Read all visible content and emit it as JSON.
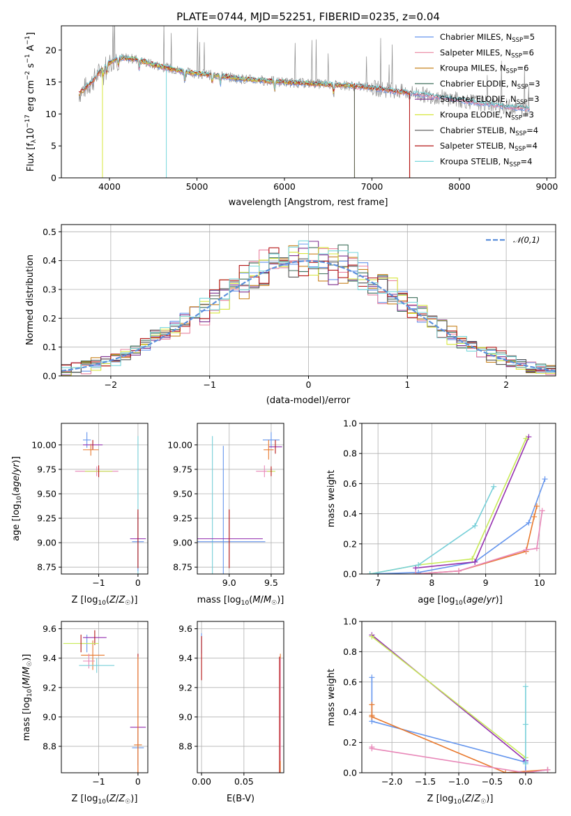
{
  "colors": {
    "palette": [
      "#6495ed",
      "#e9829f",
      "#c8821e",
      "#3c6e5a",
      "#7b2e8e",
      "#d7e63c",
      "#555555",
      "#b41414",
      "#78d7dc"
    ],
    "summary": [
      "#6495ed",
      "#9530b0",
      "#e8782c",
      "#e887b8",
      "#c8ea58",
      "#76cfd8"
    ]
  },
  "chart_data": [
    {
      "type": "line",
      "title": "PLATE=0744, MJD=52251, FIBERID=0235, z=0.04",
      "xlabel": "wavelength [Angstrom, rest frame]",
      "ylabel": "Flux [f_λ 10^-17 erg cm^-2 s^-1 A^-1]",
      "xlim": [
        3450,
        9100
      ],
      "ylim": [
        0,
        23.8
      ],
      "xticks": [
        4000,
        5000,
        6000,
        7000,
        8000,
        9000
      ],
      "yticks": [
        0,
        5,
        10,
        15,
        20
      ],
      "grid": false,
      "legend_position": "top-right",
      "legend": [
        {
          "model": "Chabrier MILES",
          "nssp": "5"
        },
        {
          "model": "Salpeter MILES",
          "nssp": "6"
        },
        {
          "model": "Kroupa MILES",
          "nssp": "6"
        },
        {
          "model": "Chabrier ELODIE",
          "nssp": "3"
        },
        {
          "model": "Salpeter ELODIE",
          "nssp": "3"
        },
        {
          "model": "Kroupa ELODIE",
          "nssp": "3"
        },
        {
          "model": "Chabrier STELIB",
          "nssp": "4"
        },
        {
          "model": "Salpeter STELIB",
          "nssp": "4"
        },
        {
          "model": "Kroupa STELIB",
          "nssp": "4"
        }
      ],
      "continuum": {
        "x": [
          3650,
          3800,
          3950,
          4100,
          4300,
          4500,
          4700,
          4900,
          5100,
          5300,
          5500,
          5800,
          6100,
          6400,
          6700,
          7000,
          7300,
          7600,
          7900,
          8200,
          8500,
          8800
        ],
        "y": [
          13.2,
          15.0,
          17.6,
          18.8,
          18.6,
          17.7,
          17.1,
          16.5,
          16.2,
          15.9,
          15.5,
          15.2,
          14.9,
          14.7,
          14.5,
          14.1,
          13.5,
          13.0,
          12.4,
          11.8,
          11.2,
          10.8
        ]
      },
      "model_ends": [
        8800,
        8800,
        7430,
        6800,
        6800,
        6800,
        8800,
        7430,
        8800
      ],
      "model_starts": [
        3700,
        3700,
        3650,
        3900,
        3900,
        3900,
        3700,
        3650,
        3700
      ]
    },
    {
      "type": "line",
      "xlabel": "(data-model)/error",
      "ylabel": "Normed distribution",
      "xlim": [
        -2.5,
        2.5
      ],
      "ylim": [
        0,
        0.525
      ],
      "xticks": [
        -2,
        -1,
        0,
        1,
        2
      ],
      "yticks": [
        0.0,
        0.1,
        0.2,
        0.3,
        0.4,
        0.5
      ],
      "grid": true,
      "legend_position": "top-right",
      "reference_curve": {
        "name": "𝒩(0,1)",
        "style": "dashed",
        "mu": 0,
        "sigma": 1
      }
    },
    {
      "type": "scatter",
      "xlabel": "Z [log10(Z/Z☉)]",
      "ylabel": "age  [log10(age/yr)]",
      "xlim": [
        -1.95,
        0.25
      ],
      "ylim": [
        8.68,
        10.22
      ],
      "xticks": [
        -1,
        0
      ],
      "yticks": [
        8.75,
        9.0,
        9.25,
        9.5,
        9.75,
        10.0
      ],
      "grid": true,
      "points": [
        {
          "x": -1.3,
          "y": 10.05,
          "xerr": 0.1,
          "yerr": 0.08
        },
        {
          "x": -1.15,
          "y": 10.0,
          "xerr": 0.25,
          "yerr": 0.05
        },
        {
          "x": -1.2,
          "y": 9.95,
          "xerr": 0.2,
          "yerr": 0.06
        },
        {
          "x": -1.05,
          "y": 9.73,
          "xerr": 0.55,
          "yerr": 0.05
        },
        {
          "x": -1.0,
          "y": 9.73,
          "xerr": 0.35,
          "yerr": 0.06
        },
        {
          "x": 0.0,
          "y": 9.04,
          "xerr": 0.2,
          "yerr": 1.05
        },
        {
          "x": 0.0,
          "y": 9.01,
          "xerr": 0.15,
          "yerr": 0.3
        },
        {
          "x": 0.0,
          "y": 9.04,
          "xerr": 0.2,
          "yerr": 0.3
        }
      ]
    },
    {
      "type": "scatter",
      "xlabel": "mass [log10(M/M☉)]",
      "ylabel": "",
      "xlim": [
        8.62,
        9.65
      ],
      "ylim": [
        8.68,
        10.22
      ],
      "xticks": [
        9.0,
        9.5
      ],
      "yticks": [
        8.75,
        9.0,
        9.25,
        9.5,
        9.75,
        10.0
      ],
      "grid": true,
      "points": [
        {
          "x": 9.5,
          "y": 10.05,
          "xerr": 0.1,
          "yerr": 0.08
        },
        {
          "x": 9.55,
          "y": 9.98,
          "xerr": 0.08,
          "yerr": 0.07
        },
        {
          "x": 9.47,
          "y": 9.95,
          "xerr": 0.06,
          "yerr": 0.1
        },
        {
          "x": 9.42,
          "y": 9.73,
          "xerr": 0.1,
          "yerr": 0.06
        },
        {
          "x": 9.5,
          "y": 9.73,
          "xerr": 0.05,
          "yerr": 0.05
        },
        {
          "x": 8.8,
          "y": 9.04,
          "xerr": 0.12,
          "yerr": 1.05
        },
        {
          "x": 8.93,
          "y": 9.01,
          "xerr": 0.5,
          "yerr": 0.98
        },
        {
          "x": 9.0,
          "y": 9.04,
          "xerr": 0.4,
          "yerr": 0.3
        }
      ]
    },
    {
      "type": "line",
      "xlabel": "age  [log10(age/yr)]",
      "ylabel": "mass weight",
      "xlim": [
        6.7,
        10.3
      ],
      "ylim": [
        0,
        1.0
      ],
      "xticks": [
        7,
        8,
        9,
        10
      ],
      "yticks": [
        0.0,
        0.2,
        0.4,
        0.6,
        0.8,
        1.0
      ],
      "grid": true,
      "series": [
        {
          "x": [
            6.85,
            7.75,
            8.8,
            9.8,
            10.1
          ],
          "y": [
            0.0,
            0.01,
            0.08,
            0.34,
            0.63
          ]
        },
        {
          "x": [
            7.7,
            8.8,
            9.8
          ],
          "y": [
            0.04,
            0.08,
            0.91
          ]
        },
        {
          "x": [
            7.7,
            8.5,
            9.75,
            9.9,
            9.95
          ],
          "y": [
            0.0,
            0.02,
            0.15,
            0.38,
            0.45
          ]
        },
        {
          "x": [
            7.7,
            8.5,
            9.75,
            9.95,
            10.05
          ],
          "y": [
            0.0,
            0.02,
            0.16,
            0.17,
            0.42
          ]
        },
        {
          "x": [
            6.85,
            7.75,
            8.75,
            9.75
          ],
          "y": [
            0.0,
            0.06,
            0.1,
            0.9
          ]
        },
        {
          "x": [
            6.85,
            7.75,
            8.8,
            9.15
          ],
          "y": [
            0.0,
            0.06,
            0.32,
            0.58
          ]
        }
      ]
    },
    {
      "type": "scatter",
      "xlabel": "Z [log10(Z/Z☉)]",
      "ylabel": "mass [log10(M/M☉)]",
      "xlim": [
        -1.95,
        0.25
      ],
      "ylim": [
        8.62,
        9.65
      ],
      "xticks": [
        -1,
        0
      ],
      "yticks": [
        8.8,
        9.0,
        9.2,
        9.4,
        9.6
      ],
      "grid": true,
      "points": [
        {
          "x": -1.3,
          "y": 9.5,
          "xerr": 0.15,
          "yerr": 0.06
        },
        {
          "x": -1.1,
          "y": 9.54,
          "xerr": 0.3,
          "yerr": 0.05
        },
        {
          "x": -1.15,
          "y": 9.42,
          "xerr": 0.3,
          "yerr": 0.1
        },
        {
          "x": -1.25,
          "y": 9.38,
          "xerr": 0.15,
          "yerr": 0.05
        },
        {
          "x": -1.45,
          "y": 9.5,
          "xerr": 0.45,
          "yerr": 0.06
        },
        {
          "x": -1.05,
          "y": 9.35,
          "xerr": 0.45,
          "yerr": 0.05
        },
        {
          "x": 0.0,
          "y": 8.79,
          "xerr": 0.15,
          "yerr": 0.12
        },
        {
          "x": 0.0,
          "y": 8.93,
          "xerr": 0.2,
          "yerr": 0.5
        },
        {
          "x": 0.0,
          "y": 8.81,
          "xerr": 0.1,
          "yerr": 0.6
        }
      ]
    },
    {
      "type": "scatter",
      "xlabel": "E(B-V)",
      "ylabel": "",
      "xlim": [
        -0.005,
        0.097
      ],
      "ylim": [
        8.62,
        9.65
      ],
      "xticks": [
        0.0,
        0.05
      ],
      "yticks": [
        8.8,
        9.0,
        9.2,
        9.4,
        9.6
      ],
      "grid": true,
      "points": [
        {
          "x": 0.0,
          "y": 9.5,
          "yerr": 0.07
        },
        {
          "x": 0.0,
          "y": 9.4,
          "yerr": 0.15
        },
        {
          "x": 0.093,
          "y": 8.93,
          "yerr": 0.5
        },
        {
          "x": 0.093,
          "y": 9.05,
          "yerr": 0.35
        },
        {
          "x": 0.092,
          "y": 8.81,
          "yerr": 0.6
        }
      ]
    },
    {
      "type": "line",
      "xlabel": "Z [log10(Z/Z☉)]",
      "ylabel": "mass weight",
      "xlim": [
        -2.45,
        0.45
      ],
      "ylim": [
        0,
        1.0
      ],
      "xticks": [
        -2.0,
        -1.5,
        -1.0,
        -0.5,
        0.0
      ],
      "yticks": [
        0.0,
        0.2,
        0.4,
        0.6,
        0.8,
        1.0
      ],
      "grid": true,
      "series": [
        {
          "x": [
            -2.3,
            -2.3,
            0.0,
            0.0,
            0.33
          ],
          "y": [
            0.63,
            0.34,
            0.07,
            0.0,
            0.02
          ]
        },
        {
          "x": [
            -2.3,
            0.0
          ],
          "y": [
            0.91,
            0.08
          ]
        },
        {
          "x": [
            -2.3,
            -2.3,
            -2.3,
            -0.3,
            0.33
          ],
          "y": [
            0.45,
            0.38,
            0.37,
            0.0,
            0.02
          ]
        },
        {
          "x": [
            -2.3,
            -2.3,
            0.0,
            0.33
          ],
          "y": [
            0.17,
            0.16,
            0.0,
            0.02
          ]
        },
        {
          "x": [
            -2.3,
            0.0
          ],
          "y": [
            0.9,
            0.1
          ]
        },
        {
          "x": [
            0.0,
            0.0,
            0.0
          ],
          "y": [
            0.57,
            0.32,
            0.06
          ]
        }
      ]
    }
  ]
}
